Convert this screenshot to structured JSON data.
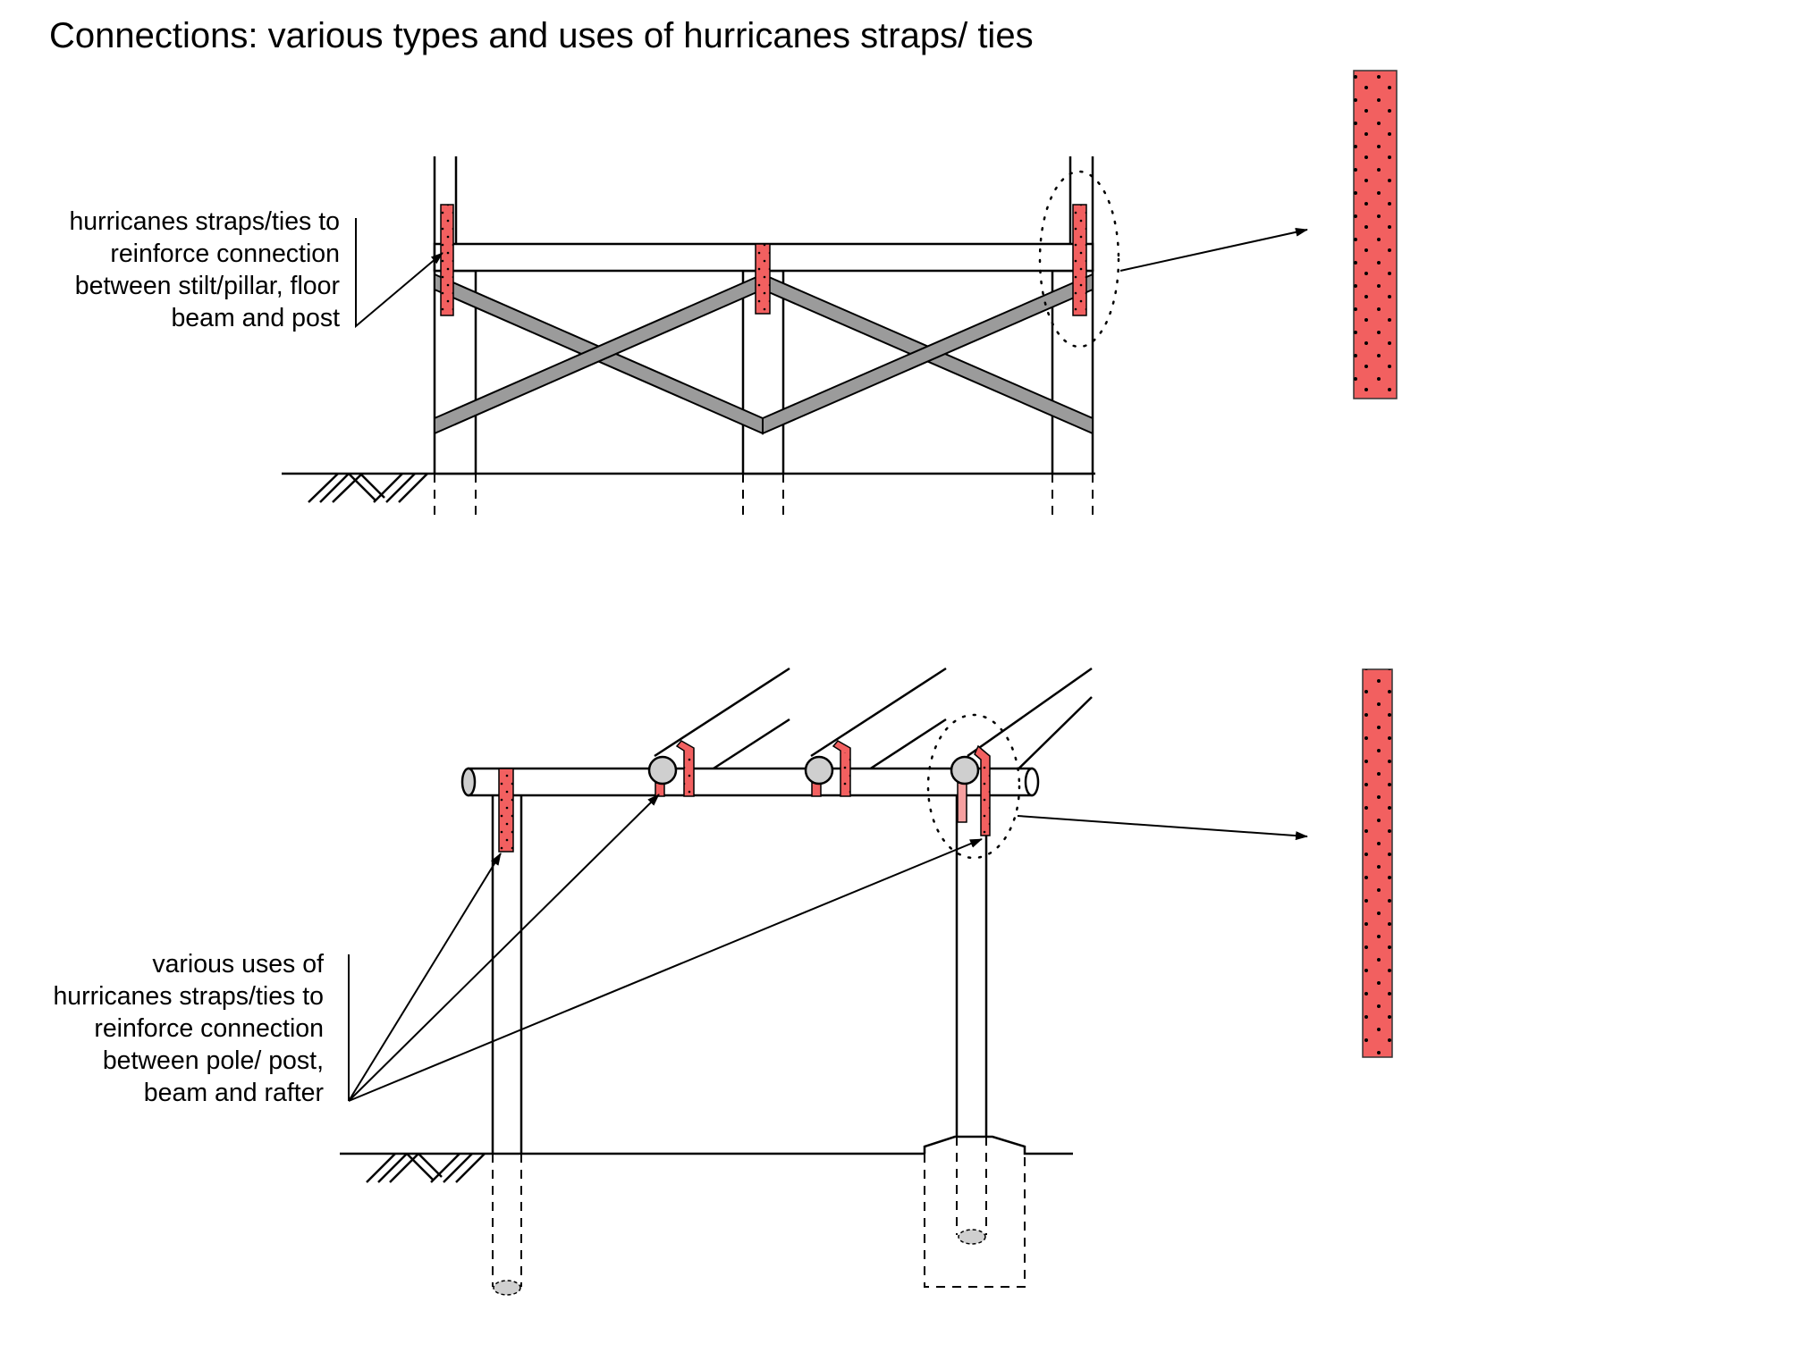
{
  "title": "Connections: various types and uses of hurricanes straps/ ties",
  "labels": {
    "top": [
      "hurricanes straps/ties to",
      "reinforce connection",
      "between stilt/pillar, floor",
      "beam and post"
    ],
    "bottom": [
      "various uses of",
      "hurricanes straps/ties to",
      "reinforce connection",
      "between pole/ post,",
      "beam and rafter"
    ]
  },
  "colors": {
    "strap": "#f26060",
    "brace": "#9b9b9b",
    "pole_end": "#cfcfcf",
    "line": "#000000"
  }
}
